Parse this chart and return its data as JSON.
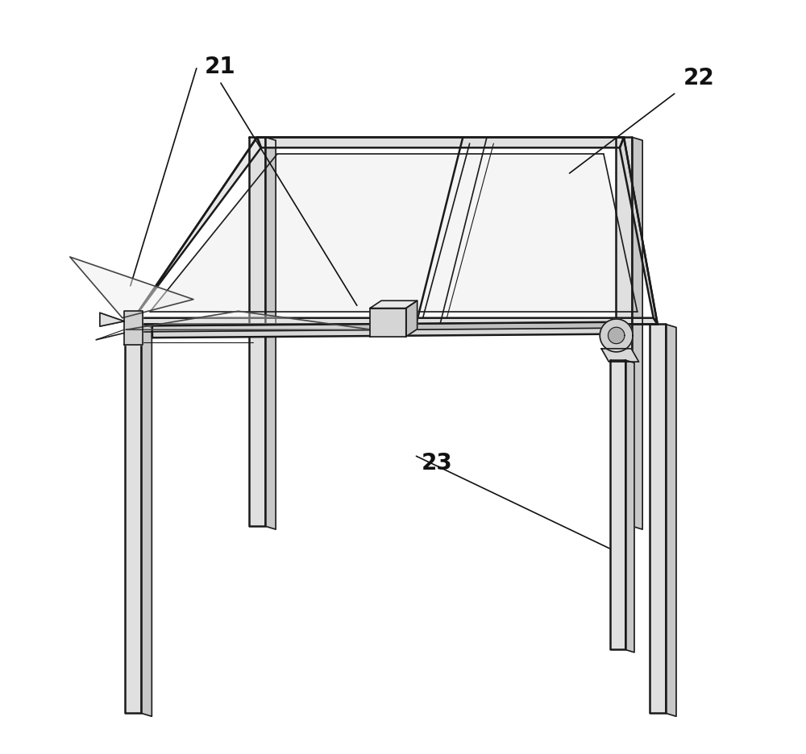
{
  "bg_color": "#ffffff",
  "line_color": "#1a1a1a",
  "fill_light": "#e8e8e8",
  "fill_mid": "#d0d0d0",
  "fill_dark": "#b8b8b8",
  "lw_thick": 1.8,
  "lw_med": 1.2,
  "lw_thin": 0.8,
  "label_21": [
    0.235,
    0.915
  ],
  "label_22": [
    0.875,
    0.9
  ],
  "label_23": [
    0.525,
    0.385
  ],
  "label_fs": 20
}
